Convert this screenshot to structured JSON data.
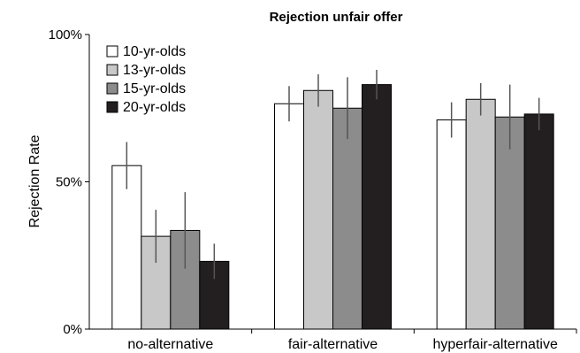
{
  "chart_data": {
    "type": "bar",
    "title": "Rejection unfair offer",
    "xlabel": "",
    "ylabel": "Rejection Rate",
    "ylim": [
      0,
      100
    ],
    "yticks": [
      0,
      50,
      100
    ],
    "ytick_labels": [
      "0%",
      "50%",
      "100%"
    ],
    "grid": false,
    "legend_position": "top-left",
    "categories": [
      "no-alternative",
      "fair-alternative",
      "hyperfair-alternative"
    ],
    "series": [
      {
        "name": "10-yr-olds",
        "color": "#ffffff",
        "values": [
          55.5,
          76.5,
          71
        ],
        "errors": [
          8,
          6,
          6
        ]
      },
      {
        "name": "13-yr-olds",
        "color": "#c8c8c8",
        "values": [
          31.5,
          81,
          78
        ],
        "errors": [
          9,
          5.5,
          5.5
        ]
      },
      {
        "name": "15-yr-olds",
        "color": "#8c8c8c",
        "values": [
          33.5,
          75,
          72
        ],
        "errors": [
          13,
          10.5,
          11
        ]
      },
      {
        "name": "20-yr-olds",
        "color": "#231f20",
        "values": [
          23,
          83,
          73
        ],
        "errors": [
          6,
          5,
          5.5
        ]
      }
    ]
  }
}
